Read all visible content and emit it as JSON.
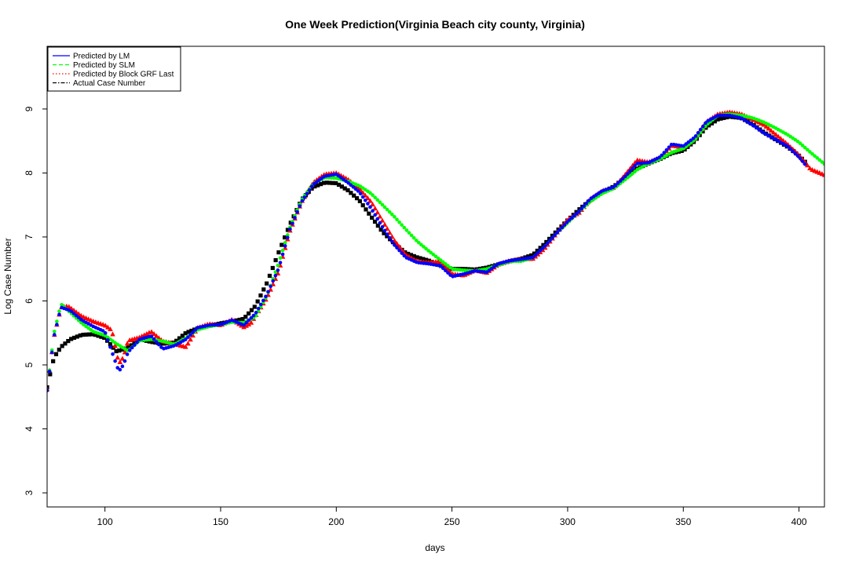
{
  "chart_data": {
    "type": "scatter",
    "title": "One Week Prediction(Virginia Beach city county, Virginia)",
    "xlabel": "days",
    "ylabel": "Log Case Number",
    "xlim": [
      75,
      411
    ],
    "ylim": [
      2.78,
      9.98
    ],
    "xticks": [
      100,
      150,
      200,
      250,
      300,
      350,
      400
    ],
    "yticks": [
      3,
      4,
      5,
      6,
      7,
      8,
      9
    ],
    "legend_position": "top-left",
    "grid": false,
    "legend": [
      {
        "label": "Predicted by LM",
        "color": "#0000ff",
        "linestyle": "solid"
      },
      {
        "label": "Predicted by SLM",
        "color": "#00ff00",
        "linestyle": "dashed"
      },
      {
        "label": "Predicted by Block GRF Last",
        "color": "#ff0000",
        "linestyle": "dotted"
      },
      {
        "label": "Actual Case Number",
        "color": "#000000",
        "linestyle": "dashdot"
      }
    ],
    "series": [
      {
        "name": "Actual Case Number",
        "color": "#000000",
        "marker": "square",
        "x": [
          75,
          78,
          81,
          85,
          90,
          95,
          100,
          105,
          110,
          115,
          120,
          125,
          130,
          135,
          140,
          145,
          150,
          155,
          160,
          165,
          170,
          175,
          180,
          185,
          190,
          195,
          200,
          205,
          210,
          215,
          220,
          225,
          230,
          235,
          240,
          245,
          250,
          255,
          260,
          265,
          270,
          275,
          280,
          285,
          290,
          295,
          300,
          305,
          310,
          315,
          320,
          325,
          330,
          335,
          340,
          345,
          350,
          355,
          360,
          365,
          370,
          375,
          380,
          385,
          390,
          395,
          400,
          403
        ],
        "y": [
          4.65,
          5.12,
          5.28,
          5.4,
          5.47,
          5.48,
          5.42,
          5.21,
          5.27,
          5.4,
          5.36,
          5.33,
          5.35,
          5.5,
          5.57,
          5.61,
          5.65,
          5.68,
          5.72,
          5.92,
          6.28,
          6.75,
          7.2,
          7.58,
          7.78,
          7.85,
          7.84,
          7.73,
          7.57,
          7.32,
          7.08,
          6.9,
          6.75,
          6.68,
          6.63,
          6.55,
          6.5,
          6.5,
          6.49,
          6.52,
          6.57,
          6.62,
          6.66,
          6.72,
          6.89,
          7.08,
          7.26,
          7.43,
          7.58,
          7.7,
          7.79,
          7.93,
          8.07,
          8.15,
          8.22,
          8.31,
          8.35,
          8.5,
          8.72,
          8.84,
          8.88,
          8.86,
          8.76,
          8.63,
          8.52,
          8.41,
          8.27,
          8.16
        ]
      },
      {
        "name": "Predicted by Block GRF Last",
        "color": "#ff0000",
        "marker": "triangle",
        "x": [
          75,
          78,
          81,
          84,
          87,
          90,
          95,
          100,
          103,
          106,
          108,
          110,
          115,
          120,
          125,
          130,
          135,
          140,
          145,
          150,
          155,
          160,
          163,
          166,
          170,
          175,
          180,
          185,
          190,
          195,
          200,
          205,
          210,
          215,
          220,
          225,
          230,
          235,
          240,
          245,
          250,
          255,
          260,
          265,
          270,
          275,
          280,
          285,
          290,
          295,
          300,
          305,
          310,
          315,
          320,
          325,
          330,
          335,
          340,
          345,
          350,
          355,
          360,
          365,
          370,
          375,
          380,
          385,
          390,
          395,
          400,
          405,
          411
        ],
        "y": [
          4.62,
          5.45,
          5.9,
          5.92,
          5.84,
          5.76,
          5.68,
          5.62,
          5.54,
          5.02,
          5.12,
          5.38,
          5.43,
          5.52,
          5.37,
          5.33,
          5.28,
          5.58,
          5.64,
          5.62,
          5.71,
          5.59,
          5.65,
          5.82,
          6.05,
          6.45,
          7.1,
          7.55,
          7.85,
          7.98,
          8.0,
          7.9,
          7.75,
          7.55,
          7.25,
          6.95,
          6.72,
          6.62,
          6.6,
          6.62,
          6.42,
          6.4,
          6.48,
          6.44,
          6.57,
          6.63,
          6.65,
          6.66,
          6.82,
          7.05,
          7.27,
          7.38,
          7.6,
          7.72,
          7.77,
          7.98,
          8.2,
          8.17,
          8.24,
          8.43,
          8.4,
          8.55,
          8.8,
          8.92,
          8.95,
          8.92,
          8.84,
          8.75,
          8.6,
          8.45,
          8.28,
          8.06,
          7.97
        ]
      },
      {
        "name": "Predicted by SLM",
        "color": "#00ff00",
        "marker": "circle",
        "x": [
          75,
          78,
          81,
          85,
          90,
          95,
          100,
          105,
          110,
          115,
          120,
          125,
          130,
          135,
          140,
          145,
          150,
          155,
          160,
          165,
          170,
          175,
          180,
          185,
          190,
          195,
          200,
          205,
          210,
          215,
          220,
          225,
          230,
          235,
          240,
          245,
          250,
          255,
          260,
          265,
          270,
          275,
          280,
          285,
          290,
          295,
          300,
          305,
          310,
          315,
          320,
          325,
          330,
          335,
          340,
          345,
          350,
          355,
          360,
          365,
          370,
          375,
          380,
          385,
          390,
          395,
          400,
          405,
          411
        ],
        "y": [
          4.6,
          5.5,
          5.95,
          5.82,
          5.65,
          5.52,
          5.46,
          5.33,
          5.22,
          5.38,
          5.4,
          5.37,
          5.32,
          5.42,
          5.55,
          5.6,
          5.63,
          5.67,
          5.66,
          5.75,
          6.08,
          6.58,
          7.15,
          7.58,
          7.83,
          7.93,
          7.92,
          7.87,
          7.8,
          7.68,
          7.5,
          7.32,
          7.12,
          6.93,
          6.78,
          6.64,
          6.5,
          6.48,
          6.47,
          6.5,
          6.56,
          6.62,
          6.62,
          6.68,
          6.85,
          7.05,
          7.22,
          7.4,
          7.56,
          7.68,
          7.76,
          7.9,
          8.05,
          8.15,
          8.22,
          8.32,
          8.38,
          8.52,
          8.75,
          8.9,
          8.92,
          8.9,
          8.86,
          8.79,
          8.7,
          8.6,
          8.48,
          8.32,
          8.14
        ]
      },
      {
        "name": "Predicted by LM",
        "color": "#0000ff",
        "marker": "circle",
        "x": [
          75,
          78,
          81,
          85,
          90,
          95,
          100,
          104,
          106,
          108,
          110,
          115,
          120,
          125,
          130,
          135,
          140,
          145,
          150,
          155,
          160,
          165,
          170,
          175,
          180,
          185,
          190,
          195,
          200,
          205,
          210,
          215,
          220,
          225,
          230,
          235,
          240,
          245,
          250,
          255,
          260,
          265,
          270,
          275,
          280,
          285,
          290,
          295,
          300,
          305,
          310,
          315,
          320,
          325,
          330,
          335,
          340,
          345,
          350,
          355,
          360,
          365,
          370,
          375,
          380,
          385,
          390,
          395,
          400,
          403
        ],
        "y": [
          4.6,
          5.45,
          5.9,
          5.85,
          5.7,
          5.6,
          5.52,
          5.1,
          4.9,
          5.0,
          5.2,
          5.4,
          5.45,
          5.25,
          5.3,
          5.4,
          5.58,
          5.62,
          5.63,
          5.7,
          5.62,
          5.8,
          6.1,
          6.5,
          7.12,
          7.55,
          7.82,
          7.95,
          7.98,
          7.85,
          7.7,
          7.45,
          7.15,
          6.88,
          6.68,
          6.6,
          6.58,
          6.55,
          6.38,
          6.42,
          6.47,
          6.45,
          6.58,
          6.63,
          6.65,
          6.68,
          6.85,
          7.05,
          7.24,
          7.4,
          7.6,
          7.72,
          7.78,
          7.95,
          8.15,
          8.16,
          8.25,
          8.45,
          8.42,
          8.56,
          8.8,
          8.9,
          8.9,
          8.86,
          8.75,
          8.62,
          8.52,
          8.42,
          8.25,
          8.12
        ]
      }
    ]
  }
}
